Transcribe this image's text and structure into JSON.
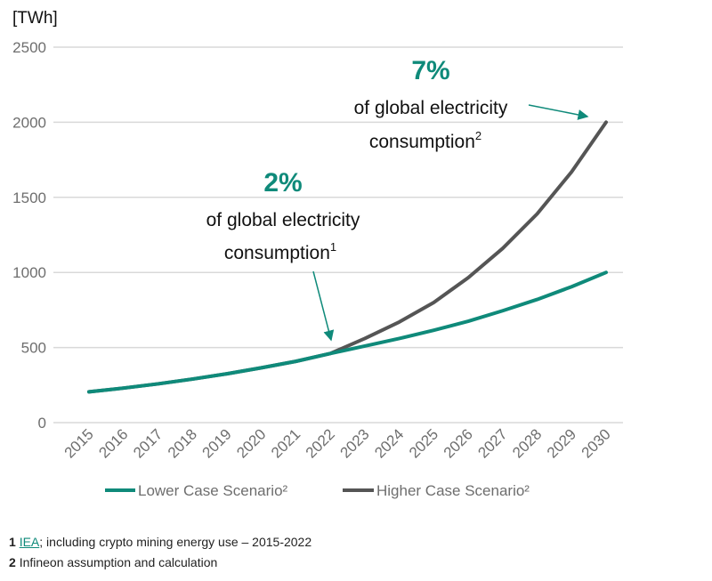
{
  "chart_data": {
    "type": "line",
    "title": "",
    "ylabel": "[TWh]",
    "xlabel": "",
    "ylim": [
      0,
      2500
    ],
    "yticks": [
      0,
      500,
      1000,
      1500,
      2000,
      2500
    ],
    "x": [
      "2015",
      "2016",
      "2017",
      "2018",
      "2019",
      "2020",
      "2021",
      "2022",
      "2023",
      "2024",
      "2025",
      "2026",
      "2027",
      "2028",
      "2029",
      "2030"
    ],
    "grid": true,
    "legend_position": "bottom",
    "series": [
      {
        "name": "Lower Case Scenario²",
        "color": "#0f8a7a",
        "values": [
          205,
          230,
          258,
          290,
          325,
          365,
          408,
          460,
          510,
          560,
          615,
          675,
          745,
          820,
          905,
          1000
        ]
      },
      {
        "name": "Higher Case Scenario²",
        "color": "#555555",
        "values": [
          205,
          230,
          258,
          290,
          325,
          365,
          408,
          460,
          560,
          670,
          800,
          965,
          1160,
          1390,
          1670,
          2000
        ]
      }
    ],
    "annotations": [
      {
        "pct": "7%",
        "line1": "of global electricity",
        "line2": "consumption",
        "sup": "2",
        "target_year": "2030"
      },
      {
        "pct": "2%",
        "line1": "of global electricity",
        "line2": "consumption",
        "sup": "1",
        "target_year": "2022"
      }
    ]
  },
  "footnotes": [
    {
      "num": "1",
      "link": "IEA",
      "text": "; including crypto mining energy use – 2015-2022"
    },
    {
      "num": "2",
      "link": "",
      "text": "Infineon assumption and calculation"
    }
  ]
}
